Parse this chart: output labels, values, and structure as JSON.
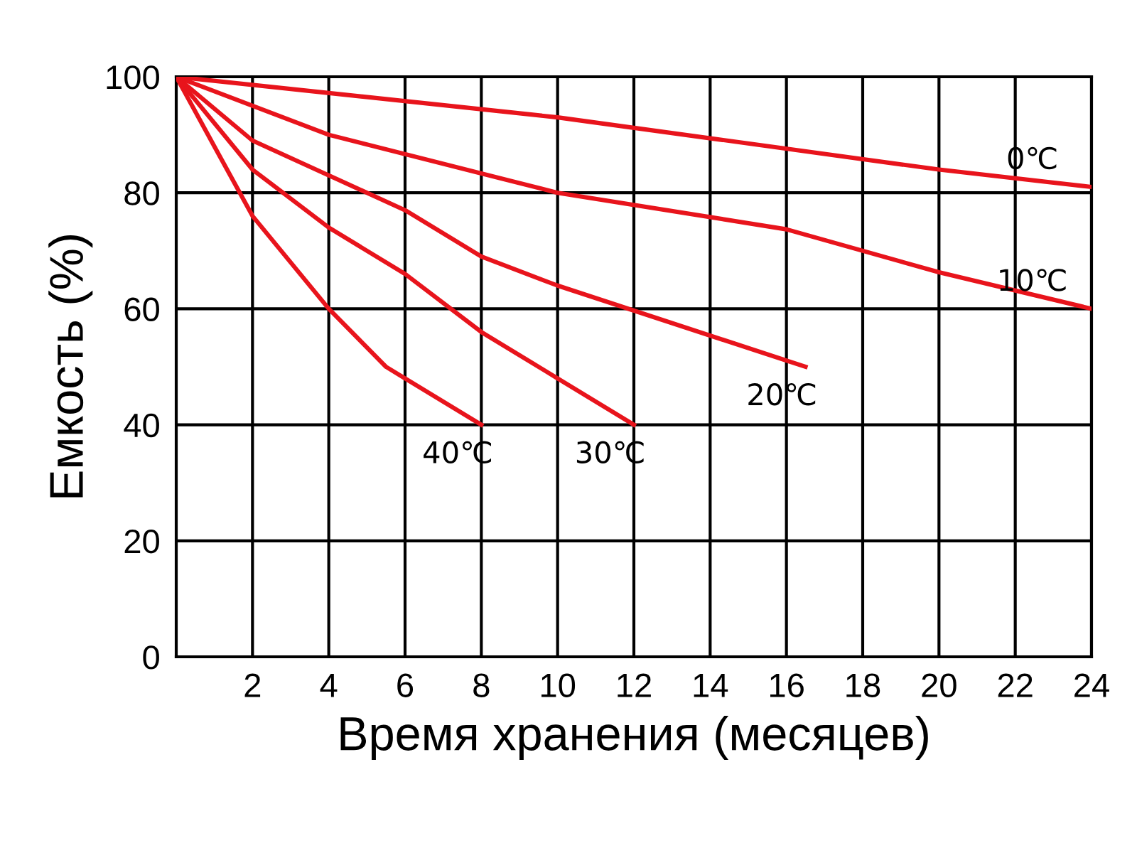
{
  "chart_data": {
    "type": "line",
    "xlabel": "Время хранения (месяцев)",
    "ylabel": "Емкость (%)",
    "xlim": [
      0,
      24
    ],
    "ylim": [
      0,
      100
    ],
    "xticks": [
      2,
      4,
      6,
      8,
      10,
      12,
      14,
      16,
      18,
      20,
      22,
      24
    ],
    "yticks": [
      0,
      20,
      40,
      60,
      80,
      100
    ],
    "grid": true,
    "legend": false,
    "marker": "none",
    "line_style": "solid",
    "series": [
      {
        "name": "0℃",
        "color": "#e8141c",
        "x": [
          0,
          10,
          20,
          24
        ],
        "values": [
          100,
          93,
          84,
          81
        ]
      },
      {
        "name": "10℃",
        "color": "#e8141c",
        "x": [
          0,
          4,
          10,
          16,
          20,
          24
        ],
        "values": [
          100,
          90,
          80,
          73.7,
          66.3,
          60
        ]
      },
      {
        "name": "20℃",
        "color": "#e8141c",
        "x": [
          0,
          2,
          4,
          6,
          8,
          10,
          16.5
        ],
        "values": [
          100,
          89,
          83,
          77,
          69,
          64,
          50
        ]
      },
      {
        "name": "30℃",
        "color": "#e8141c",
        "x": [
          0,
          2,
          4,
          6,
          8,
          10,
          12
        ],
        "values": [
          100,
          84,
          74,
          66,
          56,
          48,
          40
        ]
      },
      {
        "name": "40℃",
        "color": "#e8141c",
        "x": [
          0,
          1,
          2,
          4,
          5.5,
          6,
          8
        ],
        "values": [
          100,
          88,
          76,
          60,
          50,
          48,
          40
        ]
      }
    ]
  }
}
